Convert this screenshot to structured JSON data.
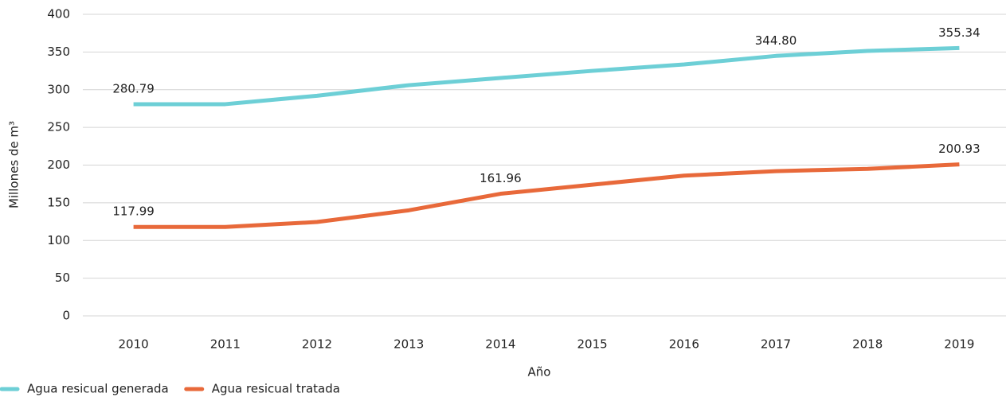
{
  "chart_data": {
    "type": "line",
    "xlabel": "Año",
    "ylabel": "Millones de m³",
    "categories": [
      "2010",
      "2011",
      "2012",
      "2013",
      "2014",
      "2015",
      "2016",
      "2017",
      "2018",
      "2019"
    ],
    "series": [
      {
        "name": "Agua resicual generada",
        "color": "#6dcfd6",
        "values": [
          280.79,
          280.8,
          292,
          306,
          315.6,
          325,
          333.5,
          344.8,
          351.5,
          355.34
        ],
        "value_labels": [
          "280.79",
          null,
          null,
          null,
          null,
          null,
          null,
          "344.80",
          null,
          "355.34"
        ]
      },
      {
        "name": "Agua resicual tratada",
        "color": "#e8693a",
        "values": [
          117.99,
          118,
          124.5,
          140,
          161.96,
          174,
          186,
          192,
          195,
          200.93
        ],
        "value_labels": [
          "117.99",
          null,
          null,
          null,
          "161.96",
          null,
          null,
          null,
          null,
          "200.93"
        ]
      }
    ],
    "ylim": [
      0,
      400
    ],
    "yticks": [
      0,
      50,
      100,
      150,
      200,
      250,
      300,
      350,
      400
    ],
    "grid": true
  }
}
